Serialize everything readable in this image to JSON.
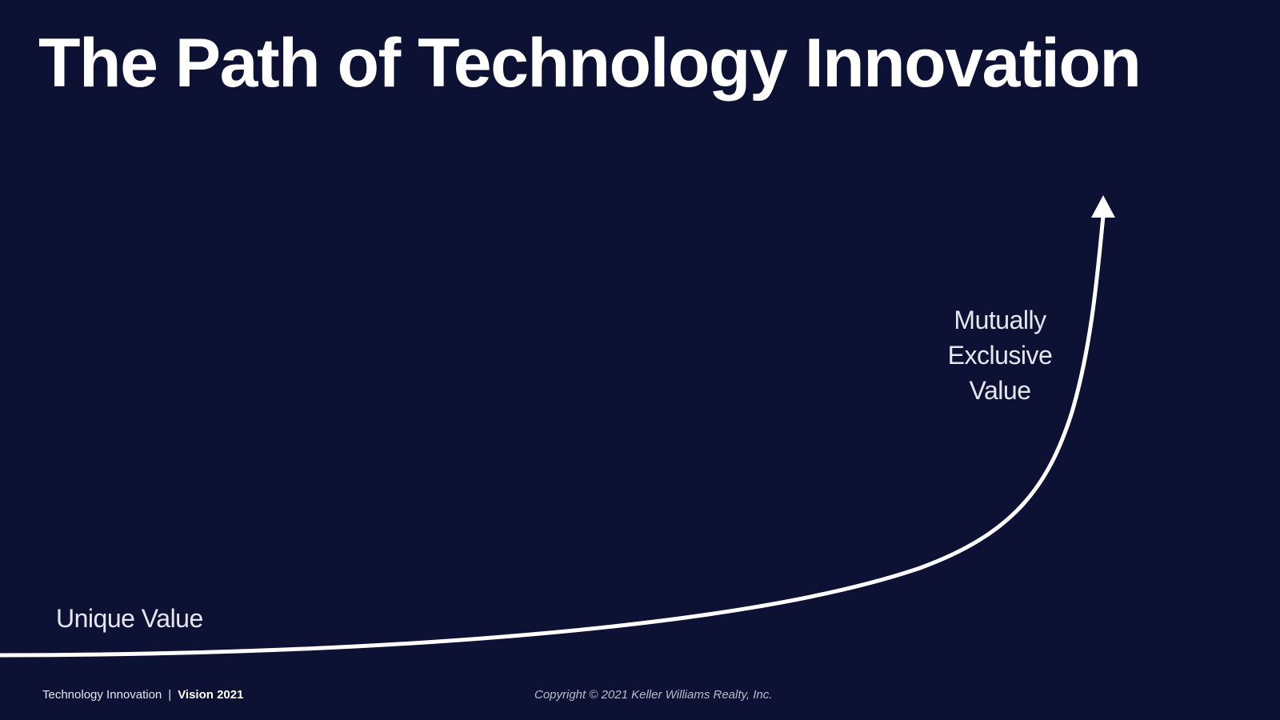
{
  "slide": {
    "title": "The Path of Technology Innovation",
    "colors": {
      "background": "#0d1234",
      "text": "#ffffff",
      "curve": "#ffffff"
    }
  },
  "diagram": {
    "start_label": "Unique Value",
    "end_label_lines": [
      "Mutually",
      "Exclusive",
      "Value"
    ],
    "curve_icon": "upward-arrow-icon"
  },
  "footer": {
    "section": "Technology Innovation",
    "separator": "|",
    "event": "Vision 2021",
    "copyright": "Copyright © 2021 Keller Williams Realty, Inc."
  }
}
